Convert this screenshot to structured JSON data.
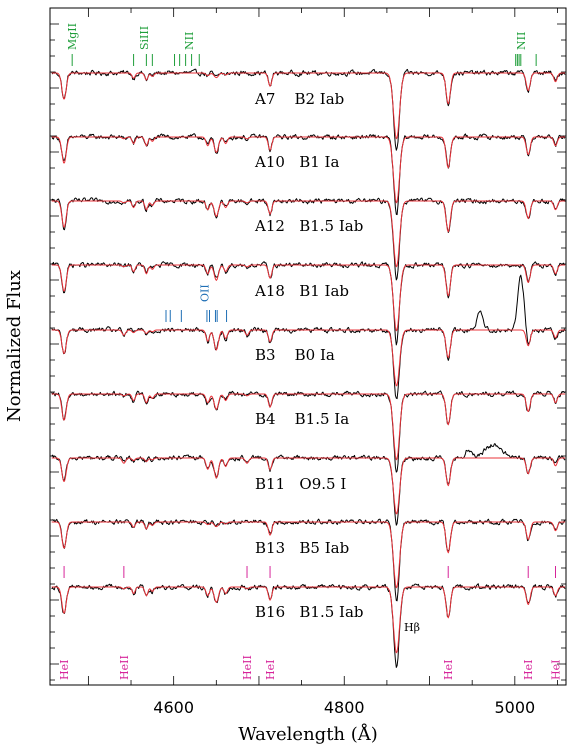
{
  "chart_data": {
    "type": "line",
    "xlabel": "Wavelength (Å)",
    "ylabel": "Normalized Flux",
    "xlim": [
      4455,
      5060
    ],
    "x_ticks": [
      4600,
      4800,
      5000
    ],
    "x_tick_labels": [
      "4600",
      "4800",
      "5000"
    ],
    "grid": false,
    "colors": {
      "observed": "#000000",
      "model": "#e8333a",
      "hei": "#d6249a",
      "nii": "#1f9e3a",
      "oii": "#1f6fb5"
    },
    "series": [
      {
        "label": "A7    B2 Iab",
        "model_temp": "cool",
        "emission": []
      },
      {
        "label": "A10   B1 Ia",
        "model_temp": "mid",
        "emission": []
      },
      {
        "label": "A12   B1.5 Iab",
        "model_temp": "mid",
        "emission": []
      },
      {
        "label": "A18   B1 Iab",
        "model_temp": "mid",
        "emission": []
      },
      {
        "label": "B3    B0 Ia",
        "model_temp": "hot",
        "emission": [
          {
            "center": 4959,
            "height": 0.09,
            "width": 3.5
          },
          {
            "center": 5007,
            "height": 0.24,
            "width": 3.5
          }
        ]
      },
      {
        "label": "B4    B1.5 Ia",
        "model_temp": "mid",
        "emission": []
      },
      {
        "label": "B11   O9.5 I",
        "model_temp": "hot",
        "emission": [
          {
            "center": 4945,
            "height": 0.04,
            "width": 3
          },
          {
            "center": 4975,
            "height": 0.06,
            "width": 10
          }
        ]
      },
      {
        "label": "B13   B5 Iab",
        "model_temp": "cool",
        "emission": []
      },
      {
        "label": "B16   B1.5 Iab",
        "model_temp": "mid",
        "emission": []
      }
    ],
    "lines": [
      {
        "ion": "HeI",
        "wavelength": 4471.5,
        "depth": 0.12,
        "width": 2.5
      },
      {
        "ion": "HeII",
        "wavelength": 4541.6,
        "depth": 0.02,
        "width": 2.0
      },
      {
        "ion": "SiIII",
        "wavelength": 4553.0,
        "depth": 0.03,
        "width": 1.8
      },
      {
        "ion": "SiIII",
        "wavelength": 4568.0,
        "depth": 0.04,
        "width": 1.8
      },
      {
        "ion": "SiIII",
        "wavelength": 4575.0,
        "depth": 0.02,
        "width": 1.8
      },
      {
        "ion": "OII",
        "wavelength": 4640.0,
        "depth": 0.04,
        "width": 2.0
      },
      {
        "ion": "OII",
        "wavelength": 4650.0,
        "depth": 0.07,
        "width": 2.5
      },
      {
        "ion": "OII",
        "wavelength": 4661.0,
        "depth": 0.03,
        "width": 2.0
      },
      {
        "ion": "HeII",
        "wavelength": 4686.0,
        "depth": 0.02,
        "width": 2.0
      },
      {
        "ion": "HeI",
        "wavelength": 4713.0,
        "depth": 0.06,
        "width": 2.0
      },
      {
        "ion": "H",
        "wavelength": 4861.3,
        "depth": 0.3,
        "width": 3.5
      },
      {
        "ion": "HeI",
        "wavelength": 4921.9,
        "depth": 0.14,
        "width": 2.5
      },
      {
        "ion": "HeI",
        "wavelength": 5015.7,
        "depth": 0.08,
        "width": 2.3
      },
      {
        "ion": "HeI",
        "wavelength": 5047.7,
        "depth": 0.04,
        "width": 2.0
      }
    ],
    "annotations": [
      {
        "text": "MgII",
        "color": "nii",
        "row": "top",
        "center": 4481,
        "marks": [
          4481
        ]
      },
      {
        "text": "SiIII",
        "color": "nii",
        "row": "top",
        "center": 4565,
        "marks": [
          4553,
          4568,
          4575
        ]
      },
      {
        "text": "NII",
        "color": "nii",
        "row": "top",
        "center": 4618,
        "marks": [
          4601,
          4607,
          4614,
          4621,
          4630
        ]
      },
      {
        "text": "NII",
        "color": "nii",
        "row": "top",
        "center": 5007,
        "marks": [
          5001,
          5003,
          5005,
          5007,
          5025
        ]
      },
      {
        "text": "OII",
        "color": "oii",
        "row": "mid",
        "center": 4636,
        "marks": [
          4591,
          4596,
          4609,
          4639,
          4642,
          4649,
          4651,
          4662
        ]
      },
      {
        "text": "HeI",
        "color": "hei",
        "row": "bottom",
        "center": 4471.5,
        "marks": [
          4471.5
        ]
      },
      {
        "text": "HeII",
        "color": "hei",
        "row": "bottom",
        "center": 4541.6,
        "marks": [
          4541.6
        ]
      },
      {
        "text": "HeII",
        "color": "hei",
        "row": "bottom",
        "center": 4686,
        "marks": [
          4686
        ]
      },
      {
        "text": "HeI",
        "color": "hei",
        "row": "bottom",
        "center": 4713,
        "marks": [
          4713
        ]
      },
      {
        "text": "HeI",
        "color": "hei",
        "row": "bottom",
        "center": 4921.9,
        "marks": [
          4921.9
        ]
      },
      {
        "text": "HeI",
        "color": "hei",
        "row": "bottom",
        "center": 5015.7,
        "marks": [
          5015.7
        ]
      },
      {
        "text": "HeI",
        "color": "hei",
        "row": "bottom",
        "center": 5047.7,
        "marks": [
          5047.7
        ]
      }
    ],
    "hbeta_label": "Hβ"
  }
}
